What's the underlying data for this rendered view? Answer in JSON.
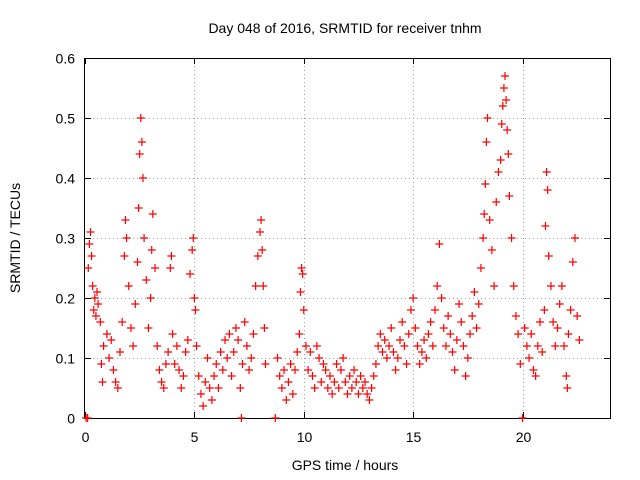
{
  "chart_data": {
    "type": "scatter",
    "title": "Day 048 of 2016, SRMTID for receiver tnhm",
    "xlabel": "GPS time / hours",
    "ylabel": "SRMTID / TECUs",
    "xlim": [
      0,
      24
    ],
    "ylim": [
      0,
      0.6
    ],
    "xticks": [
      "0",
      "5",
      "10",
      "15",
      "20"
    ],
    "xtick_values": [
      0,
      5,
      10,
      15,
      20
    ],
    "yticks": [
      "0",
      "0.1",
      "0.2",
      "0.3",
      "0.4",
      "0.5",
      "0.6"
    ],
    "ytick_values": [
      0,
      0.1,
      0.2,
      0.3,
      0.4,
      0.5,
      0.6
    ],
    "grid": true,
    "marker": "+",
    "color": "#ff0000",
    "series": [
      {
        "name": "SRMTID",
        "points": [
          [
            0.05,
            0.0
          ],
          [
            0.12,
            0.0
          ],
          [
            0.15,
            0.25
          ],
          [
            0.2,
            0.29
          ],
          [
            0.25,
            0.31
          ],
          [
            0.3,
            0.27
          ],
          [
            0.35,
            0.22
          ],
          [
            0.4,
            0.18
          ],
          [
            0.45,
            0.2
          ],
          [
            0.5,
            0.17
          ],
          [
            0.55,
            0.21
          ],
          [
            0.6,
            0.19
          ],
          [
            0.7,
            0.16
          ],
          [
            0.75,
            0.09
          ],
          [
            0.8,
            0.06
          ],
          [
            0.85,
            0.12
          ],
          [
            1.0,
            0.14
          ],
          [
            1.1,
            0.1
          ],
          [
            1.2,
            0.13
          ],
          [
            1.3,
            0.08
          ],
          [
            1.4,
            0.06
          ],
          [
            1.5,
            0.05
          ],
          [
            1.6,
            0.11
          ],
          [
            1.7,
            0.16
          ],
          [
            1.8,
            0.27
          ],
          [
            1.85,
            0.33
          ],
          [
            1.9,
            0.3
          ],
          [
            2.0,
            0.22
          ],
          [
            2.1,
            0.15
          ],
          [
            2.2,
            0.12
          ],
          [
            2.3,
            0.19
          ],
          [
            2.4,
            0.26
          ],
          [
            2.45,
            0.35
          ],
          [
            2.5,
            0.44
          ],
          [
            2.55,
            0.5
          ],
          [
            2.6,
            0.46
          ],
          [
            2.65,
            0.4
          ],
          [
            2.7,
            0.3
          ],
          [
            2.8,
            0.23
          ],
          [
            2.9,
            0.15
          ],
          [
            3.0,
            0.2
          ],
          [
            3.05,
            0.28
          ],
          [
            3.1,
            0.34
          ],
          [
            3.2,
            0.25
          ],
          [
            3.3,
            0.12
          ],
          [
            3.4,
            0.08
          ],
          [
            3.5,
            0.06
          ],
          [
            3.6,
            0.05
          ],
          [
            3.7,
            0.09
          ],
          [
            3.8,
            0.11
          ],
          [
            3.9,
            0.25
          ],
          [
            3.95,
            0.27
          ],
          [
            4.0,
            0.14
          ],
          [
            4.1,
            0.09
          ],
          [
            4.2,
            0.12
          ],
          [
            4.3,
            0.08
          ],
          [
            4.4,
            0.05
          ],
          [
            4.5,
            0.07
          ],
          [
            4.6,
            0.11
          ],
          [
            4.7,
            0.13
          ],
          [
            4.8,
            0.24
          ],
          [
            4.9,
            0.28
          ],
          [
            4.95,
            0.3
          ],
          [
            5.0,
            0.2
          ],
          [
            5.05,
            0.18
          ],
          [
            5.1,
            0.12
          ],
          [
            5.2,
            0.07
          ],
          [
            5.3,
            0.04
          ],
          [
            5.4,
            0.02
          ],
          [
            5.5,
            0.06
          ],
          [
            5.6,
            0.1
          ],
          [
            5.7,
            0.05
          ],
          [
            5.8,
            0.03
          ],
          [
            5.9,
            0.07
          ],
          [
            6.0,
            0.09
          ],
          [
            6.1,
            0.05
          ],
          [
            6.2,
            0.11
          ],
          [
            6.3,
            0.08
          ],
          [
            6.4,
            0.13
          ],
          [
            6.5,
            0.1
          ],
          [
            6.6,
            0.14
          ],
          [
            6.7,
            0.07
          ],
          [
            6.8,
            0.11
          ],
          [
            6.9,
            0.15
          ],
          [
            7.0,
            0.13
          ],
          [
            7.1,
            0.05
          ],
          [
            7.15,
            0.0
          ],
          [
            7.2,
            0.09
          ],
          [
            7.3,
            0.16
          ],
          [
            7.4,
            0.12
          ],
          [
            7.5,
            0.08
          ],
          [
            7.6,
            0.1
          ],
          [
            7.7,
            0.14
          ],
          [
            7.8,
            0.22
          ],
          [
            7.9,
            0.27
          ],
          [
            8.0,
            0.31
          ],
          [
            8.05,
            0.33
          ],
          [
            8.1,
            0.28
          ],
          [
            8.15,
            0.22
          ],
          [
            8.2,
            0.15
          ],
          [
            8.25,
            0.09
          ],
          [
            8.7,
            0.0
          ],
          [
            8.8,
            0.1
          ],
          [
            8.9,
            0.07
          ],
          [
            9.0,
            0.05
          ],
          [
            9.1,
            0.08
          ],
          [
            9.2,
            0.03
          ],
          [
            9.3,
            0.06
          ],
          [
            9.4,
            0.09
          ],
          [
            9.5,
            0.04
          ],
          [
            9.6,
            0.08
          ],
          [
            9.7,
            0.11
          ],
          [
            9.8,
            0.14
          ],
          [
            9.85,
            0.21
          ],
          [
            9.9,
            0.25
          ],
          [
            9.95,
            0.24
          ],
          [
            10.0,
            0.18
          ],
          [
            10.1,
            0.12
          ],
          [
            10.2,
            0.08
          ],
          [
            10.3,
            0.11
          ],
          [
            10.4,
            0.07
          ],
          [
            10.5,
            0.05
          ],
          [
            10.6,
            0.12
          ],
          [
            10.7,
            0.1
          ],
          [
            10.8,
            0.06
          ],
          [
            10.9,
            0.09
          ],
          [
            11.0,
            0.08
          ],
          [
            11.1,
            0.05
          ],
          [
            11.2,
            0.07
          ],
          [
            11.3,
            0.04
          ],
          [
            11.4,
            0.06
          ],
          [
            11.5,
            0.09
          ],
          [
            11.6,
            0.05
          ],
          [
            11.7,
            0.08
          ],
          [
            11.8,
            0.1
          ],
          [
            11.9,
            0.06
          ],
          [
            12.0,
            0.04
          ],
          [
            12.1,
            0.07
          ],
          [
            12.2,
            0.05
          ],
          [
            12.3,
            0.08
          ],
          [
            12.4,
            0.06
          ],
          [
            12.5,
            0.04
          ],
          [
            12.6,
            0.07
          ],
          [
            12.7,
            0.05
          ],
          [
            12.8,
            0.06
          ],
          [
            12.9,
            0.04
          ],
          [
            13.0,
            0.03
          ],
          [
            13.1,
            0.05
          ],
          [
            13.2,
            0.07
          ],
          [
            13.3,
            0.09
          ],
          [
            13.4,
            0.12
          ],
          [
            13.5,
            0.14
          ],
          [
            13.6,
            0.11
          ],
          [
            13.7,
            0.13
          ],
          [
            13.8,
            0.1
          ],
          [
            13.9,
            0.12
          ],
          [
            14.0,
            0.15
          ],
          [
            14.1,
            0.11
          ],
          [
            14.2,
            0.08
          ],
          [
            14.3,
            0.1
          ],
          [
            14.4,
            0.13
          ],
          [
            14.5,
            0.16
          ],
          [
            14.6,
            0.12
          ],
          [
            14.7,
            0.09
          ],
          [
            14.8,
            0.14
          ],
          [
            14.9,
            0.18
          ],
          [
            15.0,
            0.2
          ],
          [
            15.1,
            0.15
          ],
          [
            15.2,
            0.12
          ],
          [
            15.3,
            0.09
          ],
          [
            15.4,
            0.11
          ],
          [
            15.5,
            0.13
          ],
          [
            15.6,
            0.1
          ],
          [
            15.7,
            0.14
          ],
          [
            15.8,
            0.16
          ],
          [
            15.9,
            0.12
          ],
          [
            16.0,
            0.18
          ],
          [
            16.1,
            0.22
          ],
          [
            16.2,
            0.29
          ],
          [
            16.3,
            0.2
          ],
          [
            16.4,
            0.15
          ],
          [
            16.5,
            0.12
          ],
          [
            16.6,
            0.17
          ],
          [
            16.7,
            0.14
          ],
          [
            16.8,
            0.11
          ],
          [
            16.9,
            0.08
          ],
          [
            17.0,
            0.13
          ],
          [
            17.1,
            0.19
          ],
          [
            17.2,
            0.16
          ],
          [
            17.3,
            0.12
          ],
          [
            17.4,
            0.07
          ],
          [
            17.5,
            0.1
          ],
          [
            17.6,
            0.14
          ],
          [
            17.7,
            0.17
          ],
          [
            17.8,
            0.21
          ],
          [
            17.9,
            0.15
          ],
          [
            18.0,
            0.19
          ],
          [
            18.1,
            0.25
          ],
          [
            18.2,
            0.3
          ],
          [
            18.25,
            0.34
          ],
          [
            18.3,
            0.39
          ],
          [
            18.35,
            0.46
          ],
          [
            18.4,
            0.5
          ],
          [
            18.5,
            0.33
          ],
          [
            18.6,
            0.28
          ],
          [
            18.7,
            0.22
          ],
          [
            18.8,
            0.36
          ],
          [
            18.9,
            0.41
          ],
          [
            19.0,
            0.43
          ],
          [
            19.05,
            0.49
          ],
          [
            19.1,
            0.52
          ],
          [
            19.15,
            0.55
          ],
          [
            19.2,
            0.57
          ],
          [
            19.25,
            0.53
          ],
          [
            19.3,
            0.48
          ],
          [
            19.35,
            0.44
          ],
          [
            19.4,
            0.37
          ],
          [
            19.5,
            0.3
          ],
          [
            19.6,
            0.22
          ],
          [
            19.7,
            0.17
          ],
          [
            19.8,
            0.14
          ],
          [
            19.9,
            0.09
          ],
          [
            20.0,
            0.0
          ],
          [
            20.1,
            0.15
          ],
          [
            20.2,
            0.12
          ],
          [
            20.3,
            0.1
          ],
          [
            20.4,
            0.14
          ],
          [
            20.5,
            0.08
          ],
          [
            20.6,
            0.07
          ],
          [
            20.7,
            0.12
          ],
          [
            20.8,
            0.16
          ],
          [
            20.9,
            0.11
          ],
          [
            21.0,
            0.18
          ],
          [
            21.05,
            0.32
          ],
          [
            21.1,
            0.41
          ],
          [
            21.15,
            0.38
          ],
          [
            21.2,
            0.27
          ],
          [
            21.3,
            0.22
          ],
          [
            21.4,
            0.16
          ],
          [
            21.5,
            0.12
          ],
          [
            21.6,
            0.15
          ],
          [
            21.7,
            0.19
          ],
          [
            21.8,
            0.22
          ],
          [
            21.9,
            0.12
          ],
          [
            22.0,
            0.07
          ],
          [
            22.05,
            0.05
          ],
          [
            22.1,
            0.14
          ],
          [
            22.2,
            0.18
          ],
          [
            22.3,
            0.26
          ],
          [
            22.4,
            0.3
          ],
          [
            22.5,
            0.17
          ],
          [
            22.6,
            0.13
          ]
        ]
      }
    ]
  }
}
